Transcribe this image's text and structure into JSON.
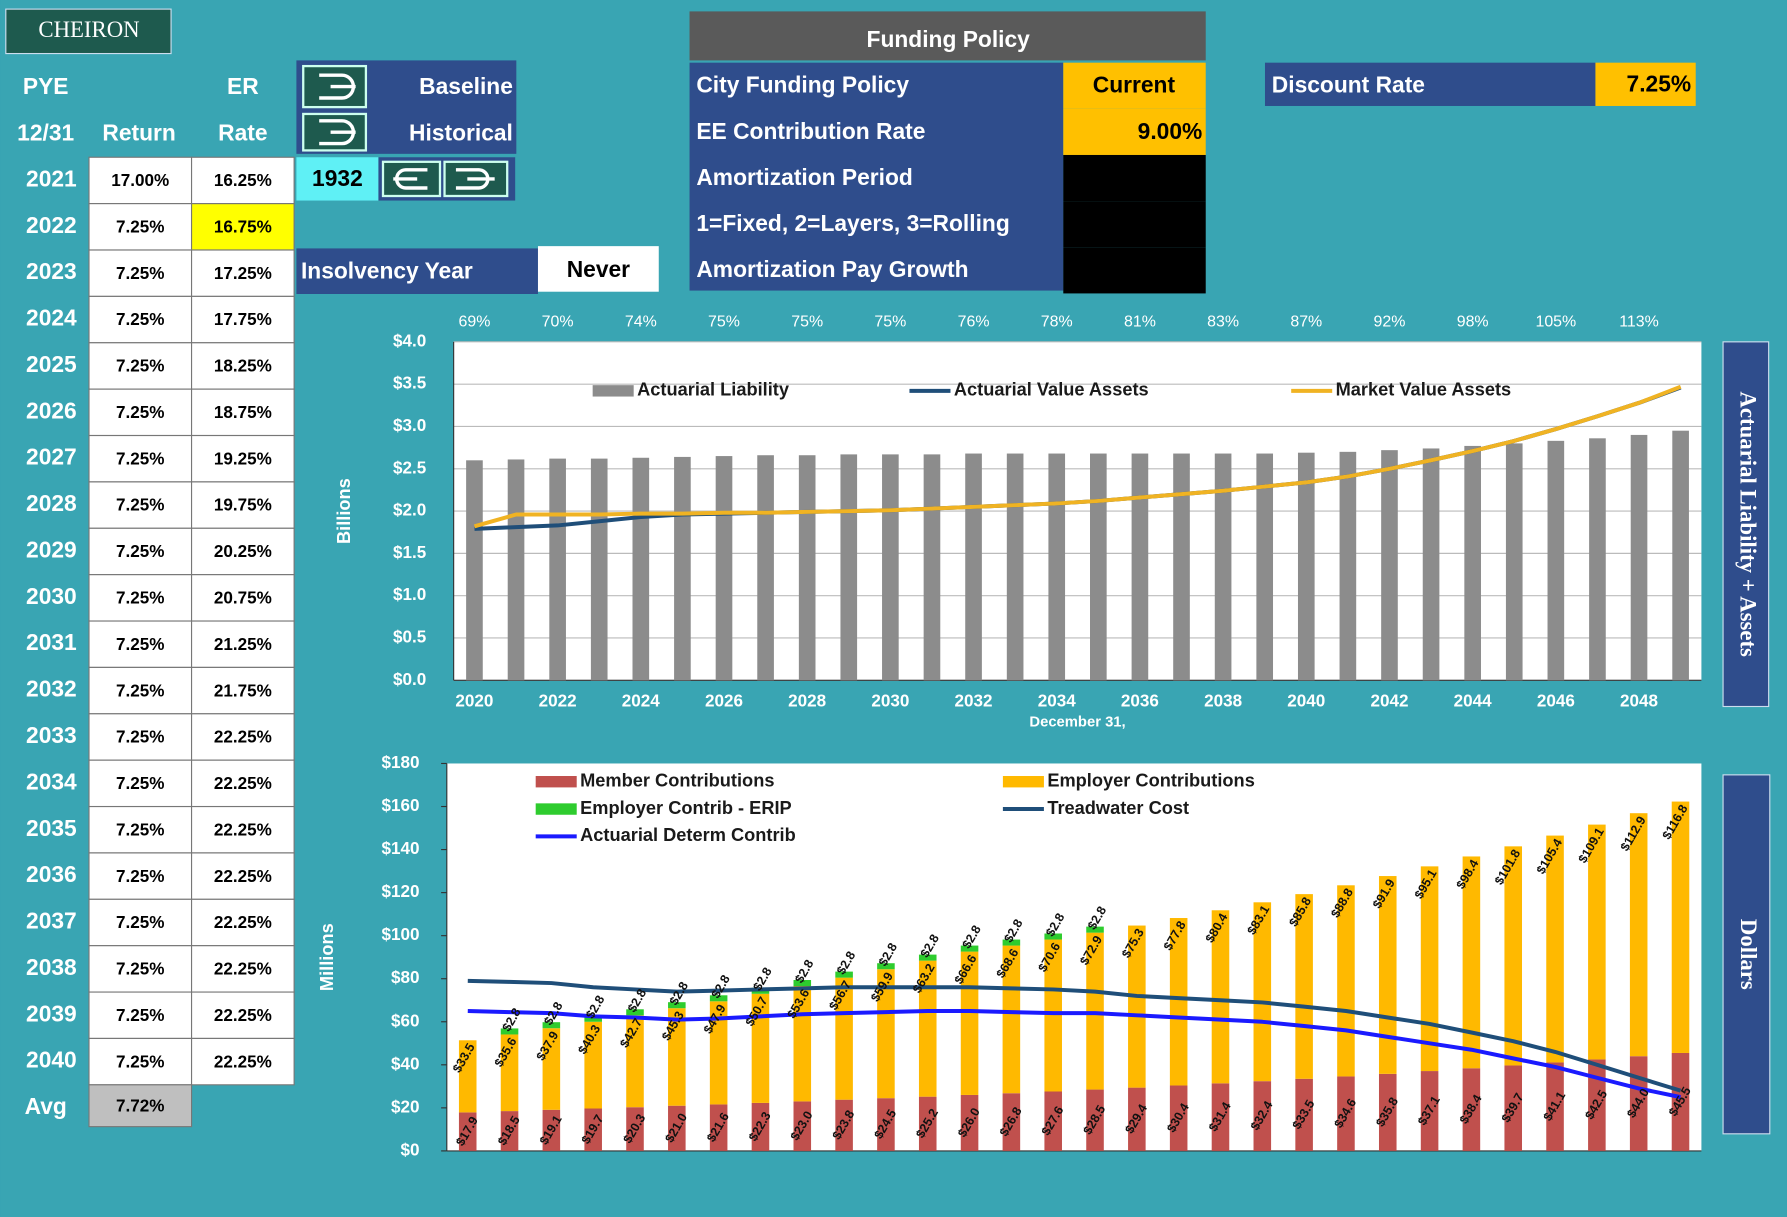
{
  "logo": "CHEIRON",
  "table": {
    "headers": {
      "pye": "PYE",
      "er": "ER",
      "date": "12/31",
      "return": "Return",
      "rate": "Rate"
    },
    "rows": [
      [
        "2021",
        "17.00%",
        "16.25%"
      ],
      [
        "2022",
        "7.25%",
        "16.75%"
      ],
      [
        "2023",
        "7.25%",
        "17.25%"
      ],
      [
        "2024",
        "7.25%",
        "17.75%"
      ],
      [
        "2025",
        "7.25%",
        "18.25%"
      ],
      [
        "2026",
        "7.25%",
        "18.75%"
      ],
      [
        "2027",
        "7.25%",
        "19.25%"
      ],
      [
        "2028",
        "7.25%",
        "19.75%"
      ],
      [
        "2029",
        "7.25%",
        "20.25%"
      ],
      [
        "2030",
        "7.25%",
        "20.75%"
      ],
      [
        "2031",
        "7.25%",
        "21.25%"
      ],
      [
        "2032",
        "7.25%",
        "21.75%"
      ],
      [
        "2033",
        "7.25%",
        "22.25%"
      ],
      [
        "2034",
        "7.25%",
        "22.25%"
      ],
      [
        "2035",
        "7.25%",
        "22.25%"
      ],
      [
        "2036",
        "7.25%",
        "22.25%"
      ],
      [
        "2037",
        "7.25%",
        "22.25%"
      ],
      [
        "2038",
        "7.25%",
        "22.25%"
      ],
      [
        "2039",
        "7.25%",
        "22.25%"
      ],
      [
        "2040",
        "7.25%",
        "22.25%"
      ]
    ],
    "avg_label": "Avg",
    "avg_value": "7.72%"
  },
  "buttons": {
    "baseline": "Baseline",
    "historical": "Historical",
    "year": "1932"
  },
  "insolvency": {
    "label": "Insolvency Year",
    "value": "Never"
  },
  "funding_policy": {
    "title": "Funding Policy",
    "rows": [
      {
        "label": "City Funding Policy",
        "value": "Current"
      },
      {
        "label": "EE Contribution Rate",
        "value": "9.00%"
      },
      {
        "label": "Amortization Period"
      },
      {
        "label": "1=Fixed, 2=Layers, 3=Rolling"
      },
      {
        "label": "Amortization Pay Growth"
      }
    ]
  },
  "discount_rate": {
    "label": "Discount Rate",
    "value": "7.25%"
  },
  "chart_data": [
    {
      "type": "combo",
      "categories": [
        2020,
        null,
        2022,
        null,
        2024,
        null,
        2026,
        null,
        2028,
        null,
        2030,
        null,
        2032,
        null,
        2034,
        null,
        2036,
        null,
        2038,
        null,
        2040,
        null,
        2042,
        null,
        2044,
        null,
        2046,
        null,
        2048,
        null
      ],
      "series": [
        {
          "name": "Actuarial Liability",
          "type": "bar",
          "color": "#8c8c8c",
          "values": [
            2.6,
            2.61,
            2.62,
            2.62,
            2.63,
            2.64,
            2.65,
            2.66,
            2.66,
            2.67,
            2.67,
            2.67,
            2.68,
            2.68,
            2.68,
            2.68,
            2.68,
            2.68,
            2.68,
            2.68,
            2.69,
            2.7,
            2.72,
            2.74,
            2.77,
            2.8,
            2.83,
            2.86,
            2.9,
            2.95
          ]
        },
        {
          "name": "Actuarial Value Assets",
          "type": "line",
          "color": "#1f4e79",
          "values": [
            1.79,
            1.81,
            1.83,
            1.88,
            1.93,
            1.96,
            1.97,
            1.98,
            1.99,
            2.0,
            2.01,
            2.03,
            2.05,
            2.07,
            2.09,
            2.12,
            2.16,
            2.2,
            2.24,
            2.29,
            2.34,
            2.41,
            2.5,
            2.6,
            2.71,
            2.83,
            2.97,
            3.12,
            3.28,
            3.46
          ]
        },
        {
          "name": "Market Value Assets",
          "type": "line",
          "color": "#f0b323",
          "values": [
            1.82,
            1.96,
            1.96,
            1.96,
            1.97,
            1.97,
            1.98,
            1.98,
            1.99,
            2.0,
            2.01,
            2.03,
            2.05,
            2.07,
            2.09,
            2.12,
            2.16,
            2.2,
            2.24,
            2.29,
            2.34,
            2.41,
            2.5,
            2.6,
            2.71,
            2.83,
            2.97,
            3.12,
            3.28,
            3.47
          ]
        }
      ],
      "ylim": [
        0,
        4
      ],
      "yticks": [
        {
          "value": 0,
          "label": "$0.0"
        },
        {
          "value": 0.5,
          "label": "$0.5"
        },
        {
          "value": 1,
          "label": "$1.0"
        },
        {
          "value": 1.5,
          "label": "$1.5"
        },
        {
          "value": 2,
          "label": "$2.0"
        },
        {
          "value": 2.5,
          "label": "$2.5"
        },
        {
          "value": 3,
          "label": "$3.0"
        },
        {
          "value": 3.5,
          "label": "$3.5"
        },
        {
          "value": 4,
          "label": "$4.0"
        }
      ],
      "ylabel": "Billions",
      "xlabel": "December 31,",
      "side_label": "Actuarial Liability + Assets",
      "grid": true,
      "stacked": false,
      "funded_ratio": {
        "x": [
          2020,
          2022,
          2024,
          2026,
          2028,
          2030,
          2032,
          2034,
          2036,
          2038,
          2040,
          2042,
          2044,
          2046,
          2048
        ],
        "values": [
          69,
          70,
          74,
          75,
          75,
          75,
          76,
          78,
          81,
          83,
          87,
          92,
          98,
          105,
          113
        ],
        "value_labels": [
          "69%",
          "70%",
          "74%",
          "75%",
          "75%",
          "75%",
          "76%",
          "78%",
          "81%",
          "83%",
          "87%",
          "92%",
          "98%",
          "105%",
          "113%"
        ]
      }
    },
    {
      "type": "combo",
      "series": [
        {
          "name": "Member Contributions",
          "type": "bar",
          "color": "#c0504d",
          "values": [
            17.9,
            18.5,
            19.1,
            19.7,
            20.3,
            21.0,
            21.6,
            22.3,
            23.0,
            23.8,
            24.5,
            25.2,
            26.0,
            26.8,
            27.6,
            28.5,
            29.4,
            30.4,
            31.4,
            32.4,
            33.5,
            34.6,
            35.8,
            37.1,
            38.4,
            39.7,
            41.1,
            42.5,
            44.0,
            45.5
          ],
          "value_labels": [
            "$17.9",
            "$18.5",
            "$19.1",
            "$19.7",
            "$20.3",
            "$21.0",
            "$21.6",
            "$22.3",
            "$23.0",
            "$23.8",
            "$24.5",
            "$25.2",
            "$26.0",
            "$26.8",
            "$27.6",
            "$28.5",
            "$29.4",
            "$30.4",
            "$31.4",
            "$32.4",
            "$33.5",
            "$34.6",
            "$35.8",
            "$37.1",
            "$38.4",
            "$39.7",
            "$41.1",
            "$42.5",
            "$44.0",
            "$45.5"
          ]
        },
        {
          "name": "Employer Contributions",
          "type": "bar",
          "color": "#ffb900",
          "values": [
            33.5,
            35.6,
            37.9,
            40.3,
            42.7,
            45.3,
            47.9,
            50.7,
            53.6,
            56.7,
            59.9,
            63.2,
            66.6,
            68.6,
            70.6,
            72.9,
            75.3,
            77.8,
            80.4,
            83.1,
            85.8,
            88.8,
            91.9,
            95.1,
            98.4,
            101.8,
            105.4,
            109.1,
            112.9,
            116.8
          ],
          "value_labels": [
            "$33.5",
            "$35.6",
            "$37.9",
            "$40.3",
            "$42.7",
            "$45.3",
            "$47.9",
            "$50.7",
            "$53.6",
            "$56.7",
            "$59.9",
            "$63.2",
            "$66.6",
            "$68.6",
            "$70.6",
            "$72.9",
            "$75.3",
            "$77.8",
            "$80.4",
            "$83.1",
            "$85.8",
            "$88.8",
            "$91.9",
            "$95.1",
            "$98.4",
            "$101.8",
            "$105.4",
            "$109.1",
            "$112.9",
            "$116.8"
          ]
        },
        {
          "name": "Employer Contrib - ERIP",
          "type": "bar",
          "color": "#2ecc2e",
          "values": [
            null,
            2.8,
            2.8,
            2.8,
            2.8,
            2.8,
            2.8,
            2.8,
            2.8,
            2.8,
            2.8,
            2.8,
            2.8,
            2.8,
            2.8,
            2.8,
            null,
            null,
            null,
            null,
            null,
            null,
            null,
            null,
            null,
            null,
            null,
            null,
            null,
            null
          ],
          "value_labels": [
            null,
            "$2.8",
            "$2.8",
            "$2.8",
            "$2.8",
            "$2.8",
            "$2.8",
            "$2.8",
            "$2.8",
            "$2.8",
            "$2.8",
            "$2.8",
            "$2.8",
            "$2.8",
            "$2.8",
            "$2.8",
            null,
            null,
            null,
            null,
            null,
            null,
            null,
            null,
            null,
            null,
            null,
            null,
            null,
            null
          ]
        },
        {
          "name": "Treadwater Cost",
          "type": "line",
          "color": "#1f4e79",
          "values": [
            79,
            78.5,
            78,
            76,
            75,
            74,
            74.5,
            75,
            75.5,
            76,
            76,
            76,
            76,
            75.5,
            75,
            74,
            72,
            71,
            70,
            69,
            67,
            65,
            62,
            59,
            55,
            51,
            46,
            40,
            34,
            28
          ]
        },
        {
          "name": "Actuarial Determ Contrib",
          "type": "line",
          "color": "#1a1aff",
          "values": [
            65,
            64.5,
            64,
            62.5,
            62,
            61,
            61.5,
            62.5,
            63.5,
            64,
            64.5,
            65,
            65,
            64.5,
            64,
            64,
            63,
            62,
            61,
            60,
            58,
            56,
            53,
            50,
            47,
            43,
            39,
            34,
            29,
            25
          ]
        }
      ],
      "ylim": [
        0,
        180
      ],
      "yticks": [
        {
          "value": 0,
          "label": "$0"
        },
        {
          "value": 20,
          "label": "$20"
        },
        {
          "value": 40,
          "label": "$40"
        },
        {
          "value": 60,
          "label": "$60"
        },
        {
          "value": 80,
          "label": "$80"
        },
        {
          "value": 100,
          "label": "$100"
        },
        {
          "value": 120,
          "label": "$120"
        },
        {
          "value": 140,
          "label": "$140"
        },
        {
          "value": 160,
          "label": "$160"
        },
        {
          "value": 180,
          "label": "$180"
        }
      ],
      "ylabel": "Millions",
      "side_label": "Dollars",
      "grid": false,
      "stacked": true
    }
  ]
}
